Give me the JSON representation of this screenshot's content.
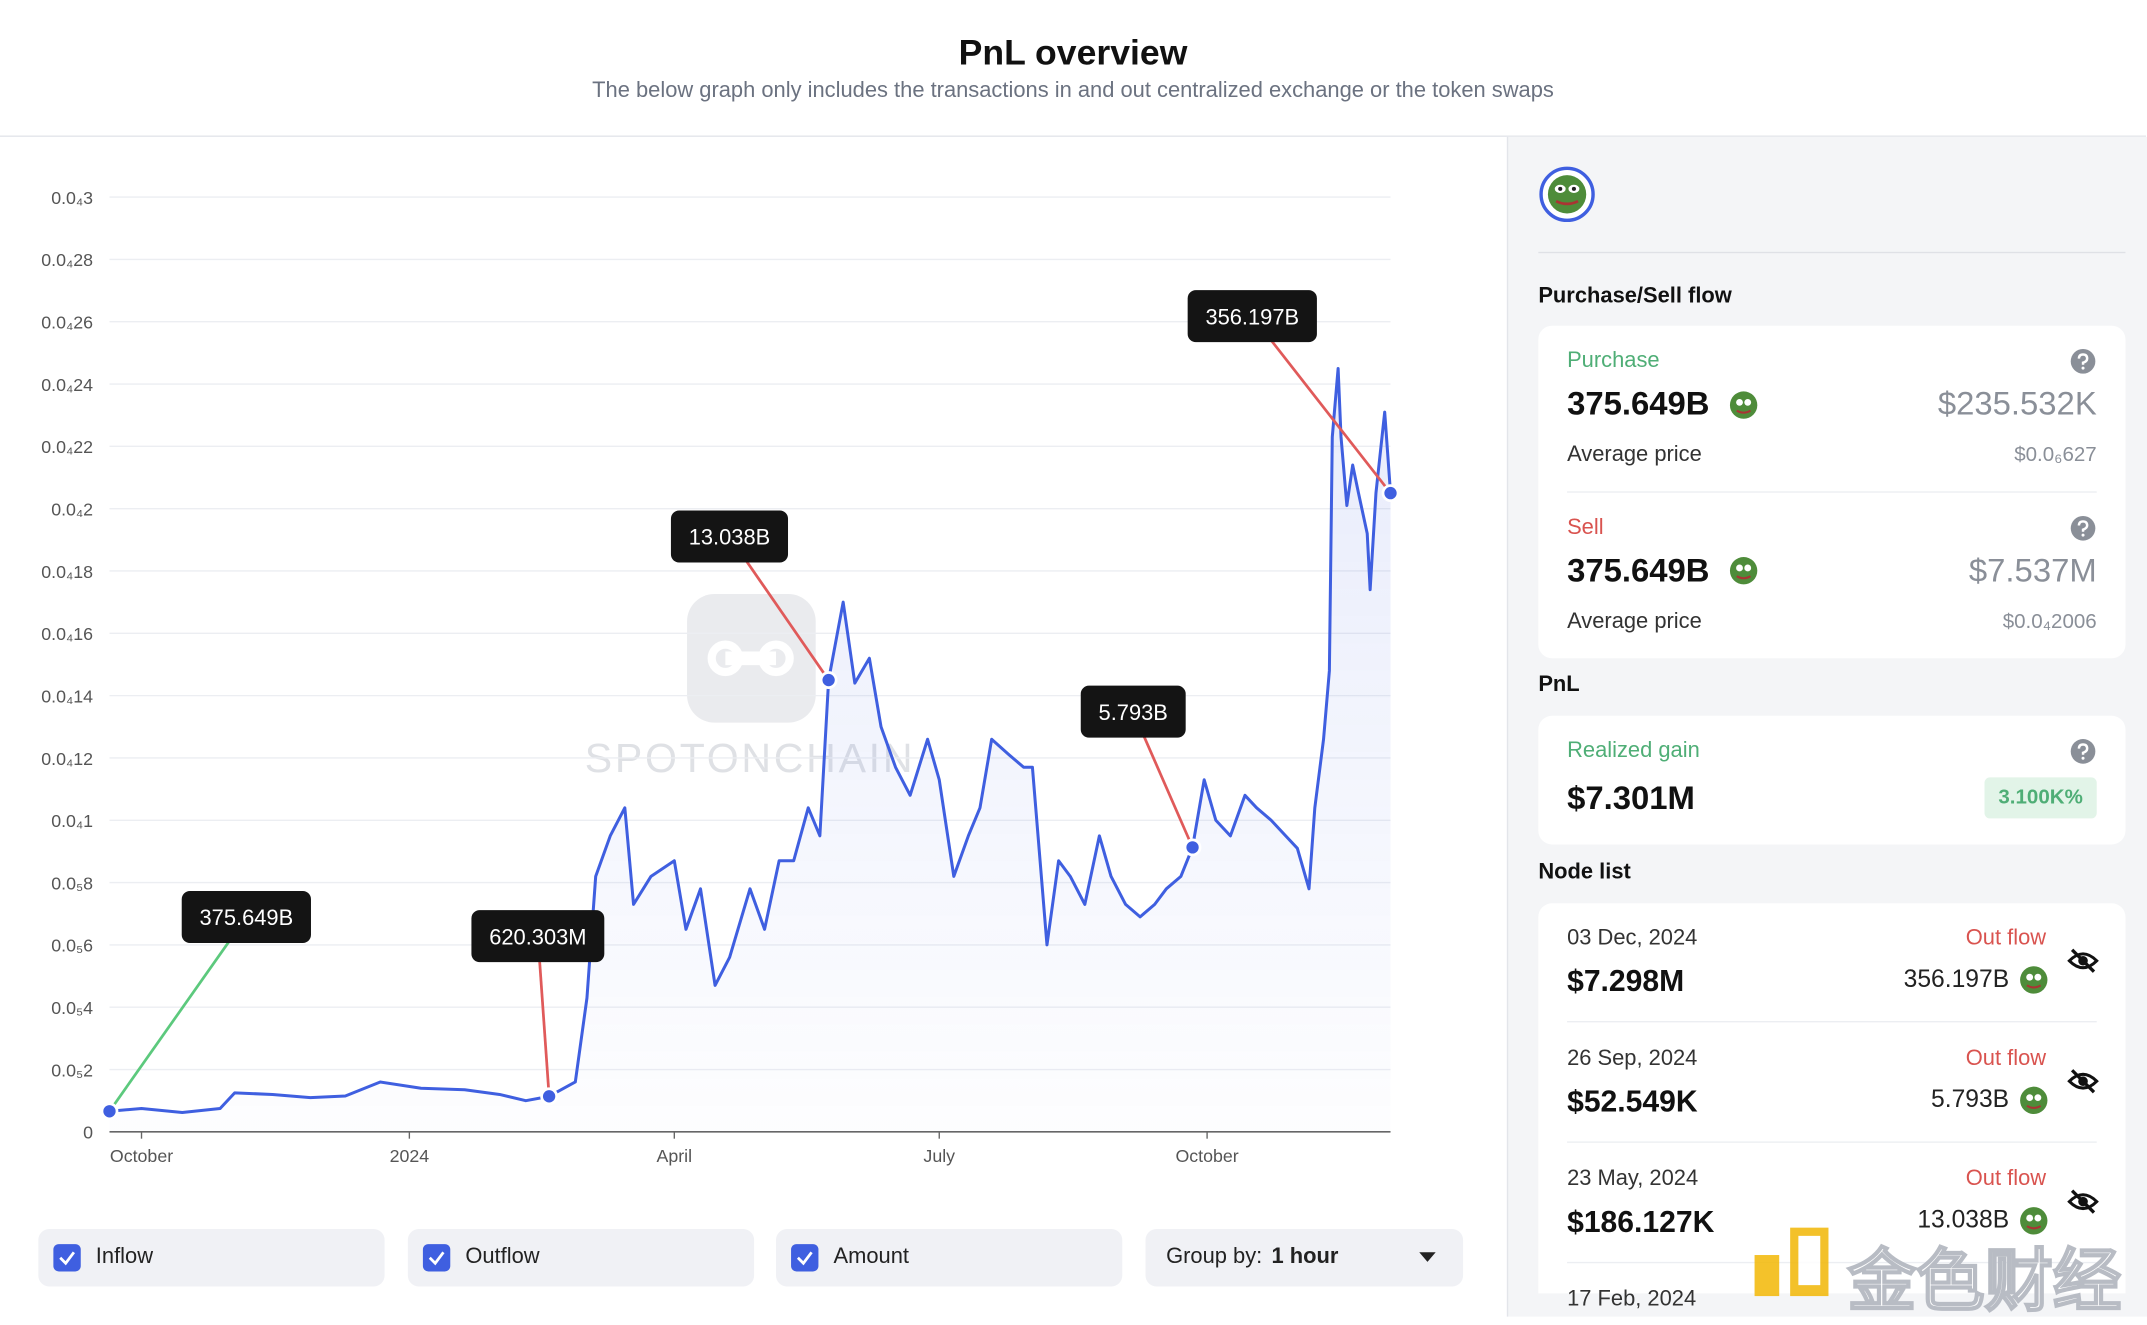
{
  "header": {
    "title": "PnL overview",
    "subtitle": "The below graph only includes the transactions in and out centralized exchange or the token swaps"
  },
  "chart_data": {
    "type": "line",
    "color": "#3f5fe0",
    "x": [
      "2023-09-20",
      "2023-10-01",
      "2023-10-15",
      "2023-10-28",
      "2023-11-02",
      "2023-11-15",
      "2023-11-28",
      "2023-12-10",
      "2023-12-22",
      "2024-01-05",
      "2024-01-20",
      "2024-02-01",
      "2024-02-10",
      "2024-02-18",
      "2024-02-27",
      "2024-03-02",
      "2024-03-05",
      "2024-03-10",
      "2024-03-15",
      "2024-03-18",
      "2024-03-24",
      "2024-04-01",
      "2024-04-05",
      "2024-04-10",
      "2024-04-15",
      "2024-04-20",
      "2024-04-27",
      "2024-05-02",
      "2024-05-07",
      "2024-05-12",
      "2024-05-17",
      "2024-05-21",
      "2024-05-24",
      "2024-05-29",
      "2024-06-02",
      "2024-06-07",
      "2024-06-11",
      "2024-06-16",
      "2024-06-21",
      "2024-06-27",
      "2024-07-01",
      "2024-07-06",
      "2024-07-11",
      "2024-07-15",
      "2024-07-19",
      "2024-07-25",
      "2024-07-30",
      "2024-08-02",
      "2024-08-07",
      "2024-08-11",
      "2024-08-15",
      "2024-08-20",
      "2024-08-25",
      "2024-08-29",
      "2024-09-03",
      "2024-09-08",
      "2024-09-13",
      "2024-09-17",
      "2024-09-22",
      "2024-09-26",
      "2024-09-30",
      "2024-10-04",
      "2024-10-09",
      "2024-10-14",
      "2024-10-18",
      "2024-10-23",
      "2024-10-28",
      "2024-11-01",
      "2024-11-05",
      "2024-11-07",
      "2024-11-10",
      "2024-11-12",
      "2024-11-13",
      "2024-11-15",
      "2024-11-16",
      "2024-11-18",
      "2024-11-20",
      "2024-11-22",
      "2024-11-25",
      "2024-11-26",
      "2024-11-28",
      "2024-12-01",
      "2024-12-03"
    ],
    "values": [
      6.6e-07,
      7.5e-07,
      6.2e-07,
      7.5e-07,
      1.25e-06,
      1.2e-06,
      1.1e-06,
      1.15e-06,
      1.6e-06,
      1.4e-06,
      1.35e-06,
      1.2e-06,
      1e-06,
      1.14e-06,
      1.6e-06,
      4.3e-06,
      8.2e-06,
      9.5e-06,
      1.04e-05,
      7.3e-06,
      8.2e-06,
      8.7e-06,
      6.5e-06,
      7.8e-06,
      4.7e-06,
      5.6e-06,
      7.8e-06,
      6.5e-06,
      8.7e-06,
      8.7e-06,
      1.04e-05,
      9.5e-06,
      1.45e-05,
      1.7e-05,
      1.44e-05,
      1.52e-05,
      1.3e-05,
      1.17e-05,
      1.08e-05,
      1.26e-05,
      1.13e-05,
      8.2e-06,
      9.5e-06,
      1.04e-05,
      1.26e-05,
      1.21e-05,
      1.17e-05,
      1.17e-05,
      6e-06,
      8.7e-06,
      8.2e-06,
      7.3e-06,
      9.5e-06,
      8.2e-06,
      7.3e-06,
      6.9e-06,
      7.3e-06,
      7.8e-06,
      8.2e-06,
      9.13e-06,
      1.13e-05,
      1e-05,
      9.5e-06,
      1.08e-05,
      1.04e-05,
      1e-05,
      9.5e-06,
      9.1e-06,
      7.8e-06,
      1.04e-05,
      1.26e-05,
      1.48e-05,
      2.23e-05,
      2.45e-05,
      2.23e-05,
      2.01e-05,
      2.14e-05,
      2.05e-05,
      1.92e-05,
      1.74e-05,
      2.05e-05,
      2.31e-05,
      2.05e-05
    ],
    "xlim": [
      "2023-09-20",
      "2024-12-03"
    ],
    "xticks": [
      {
        "value": "2023-10-01",
        "label": "October"
      },
      {
        "value": "2024-01-01",
        "label": "2024"
      },
      {
        "value": "2024-04-01",
        "label": "April"
      },
      {
        "value": "2024-07-01",
        "label": "July"
      },
      {
        "value": "2024-10-01",
        "label": "October"
      }
    ],
    "ylim": [
      0,
      3e-05
    ],
    "yticks": [
      0,
      {
        "value": 2e-06,
        "label": "0.0₅2"
      },
      {
        "value": 4e-06,
        "label": "0.0₅4"
      },
      {
        "value": 6e-06,
        "label": "0.0₅6"
      },
      {
        "value": 8e-06,
        "label": "0.0₅8"
      },
      {
        "value": 1e-05,
        "label": "0.0₄1"
      },
      {
        "value": 1.2e-05,
        "label": "0.0₄12"
      },
      {
        "value": 1.4e-05,
        "label": "0.0₄14"
      },
      {
        "value": 1.6e-05,
        "label": "0.0₄16"
      },
      {
        "value": 1.8e-05,
        "label": "0.0₄18"
      },
      {
        "value": 2e-05,
        "label": "0.0₄2"
      },
      {
        "value": 2.2e-05,
        "label": "0.0₄22"
      },
      {
        "value": 2.4e-05,
        "label": "0.0₄24"
      },
      {
        "value": 2.6e-05,
        "label": "0.0₄26"
      },
      {
        "value": 2.8e-05,
        "label": "0.0₄28"
      },
      {
        "value": 3e-05,
        "label": "0.0₄3"
      }
    ],
    "grid": true,
    "annotations": [
      {
        "text": "375.649B",
        "x": "2023-09-20",
        "y": 6.6e-07,
        "color": "#5cc97d"
      },
      {
        "text": "620.303M",
        "x": "2024-02-18",
        "y": 1.14e-06,
        "color": "#e05a5a"
      },
      {
        "text": "13.038B",
        "x": "2024-05-24",
        "y": 1.45e-05,
        "color": "#e05a5a"
      },
      {
        "text": "5.793B",
        "x": "2024-09-26",
        "y": 9.13e-06,
        "color": "#e05a5a"
      },
      {
        "text": "356.197B",
        "x": "2024-12-03",
        "y": 2.05e-05,
        "color": "#e05a5a"
      }
    ],
    "watermark": "SPOTONCHAIN"
  },
  "controls": {
    "checkboxes": [
      "Inflow",
      "Outflow",
      "Amount"
    ],
    "group_by_label": "Group by:",
    "group_by_value": "1 hour"
  },
  "panel": {
    "section_title": "Purchase/Sell flow",
    "purchase": {
      "label": "Purchase",
      "amount": "375.649B",
      "usd": "$235.532K",
      "avg_label": "Average price",
      "avg_price": "$0.0₆627"
    },
    "sell": {
      "label": "Sell",
      "amount": "375.649B",
      "usd": "$7.537M",
      "avg_label": "Average price",
      "avg_price": "$0.0₄2006"
    },
    "pnl_title": "PnL",
    "realized": {
      "label": "Realized gain",
      "value": "$7.301M",
      "percent": "3.100K%"
    },
    "node_title": "Node list",
    "nodes": [
      {
        "date": "03 Dec, 2024",
        "value": "$7.298M",
        "flow": "Out flow",
        "amount": "356.197B"
      },
      {
        "date": "26 Sep, 2024",
        "value": "$52.549K",
        "flow": "Out flow",
        "amount": "5.793B"
      },
      {
        "date": "23 May, 2024",
        "value": "$186.127K",
        "flow": "Out flow",
        "amount": "13.038B"
      },
      {
        "date": "17 Feb, 2024"
      }
    ]
  },
  "site_watermark": "金色财经"
}
